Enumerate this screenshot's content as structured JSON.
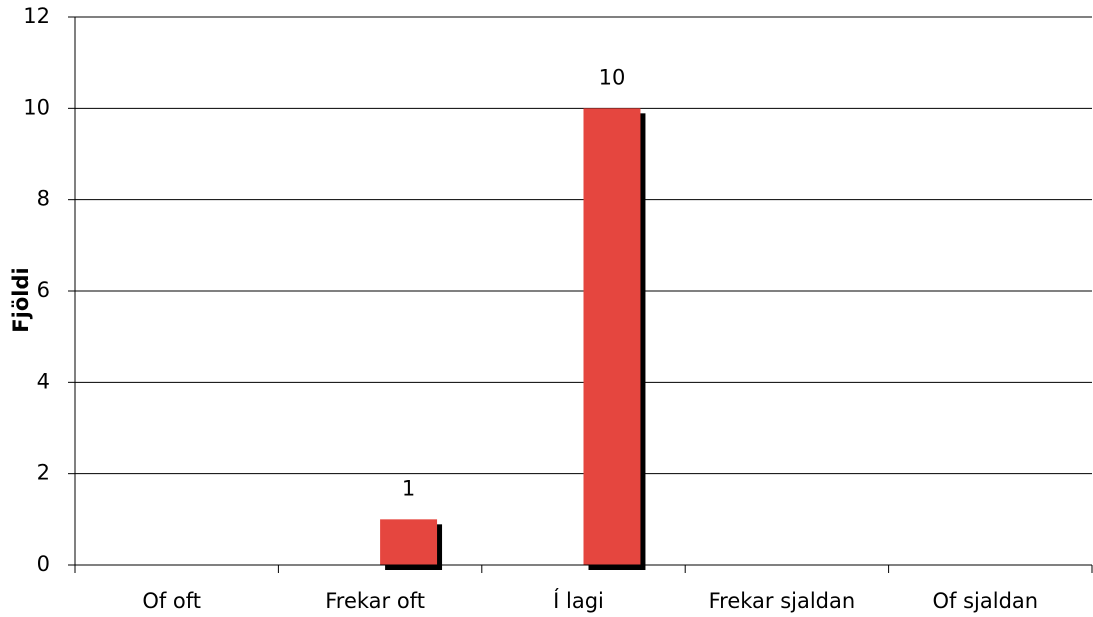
{
  "chart_data": {
    "type": "bar",
    "y_label": "Fjöldi",
    "categories": [
      "Of oft",
      "Frekar oft",
      "Í lagi",
      "Frekar sjaldan",
      "Of sjaldan"
    ],
    "values": [
      0,
      1,
      10,
      0,
      0
    ],
    "value_labels": [
      null,
      "1",
      "10",
      null,
      null
    ],
    "color": "#e5463f",
    "ylim": [
      0,
      12
    ],
    "yticks": [
      0,
      2,
      4,
      6,
      8,
      10,
      12
    ],
    "grid": true
  }
}
